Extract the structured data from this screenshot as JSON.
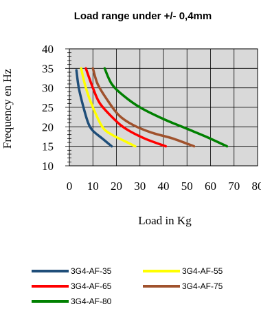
{
  "chart_data": {
    "type": "line",
    "title": "Load range under +/- 0,4mm",
    "xlabel": "Load in Kg",
    "ylabel": "Frequency en Hz",
    "xlim": [
      0,
      80
    ],
    "ylim": [
      10,
      40
    ],
    "x_ticks": [
      "0",
      "10",
      "20",
      "30",
      "40",
      "50",
      "60",
      "70",
      "80"
    ],
    "y_ticks": [
      "10",
      "15",
      "20",
      "25",
      "30",
      "35",
      "40"
    ],
    "grid": true,
    "legend_position": "bottom",
    "series": [
      {
        "name": "3G4-AF-35",
        "color": "#1f4e79",
        "points": [
          [
            3,
            34.5
          ],
          [
            4,
            30
          ],
          [
            6,
            25
          ],
          [
            8,
            21
          ],
          [
            10,
            19
          ],
          [
            14,
            17
          ],
          [
            18,
            15
          ]
        ]
      },
      {
        "name": "3G4-AF-55",
        "color": "#ffff00",
        "points": [
          [
            5,
            35
          ],
          [
            7,
            30
          ],
          [
            10,
            25
          ],
          [
            14,
            20
          ],
          [
            18,
            18
          ],
          [
            23,
            16.5
          ],
          [
            28,
            15
          ]
        ]
      },
      {
        "name": "3G4-AF-65",
        "color": "#ff0000",
        "points": [
          [
            7,
            35
          ],
          [
            10,
            30
          ],
          [
            13,
            26
          ],
          [
            19,
            22
          ],
          [
            24,
            19.5
          ],
          [
            32,
            17
          ],
          [
            41,
            15
          ]
        ]
      },
      {
        "name": "3G4-AF-75",
        "color": "#a0522d",
        "points": [
          [
            10,
            35
          ],
          [
            12,
            31
          ],
          [
            16,
            27
          ],
          [
            21,
            23
          ],
          [
            27,
            20.5
          ],
          [
            35,
            18.5
          ],
          [
            44,
            17
          ],
          [
            53,
            15
          ]
        ]
      },
      {
        "name": "3G4-AF-80",
        "color": "#008000",
        "points": [
          [
            15,
            35
          ],
          [
            18,
            31
          ],
          [
            23,
            28
          ],
          [
            30,
            25
          ],
          [
            40,
            22
          ],
          [
            50,
            19.5
          ],
          [
            58,
            17.5
          ],
          [
            67,
            15
          ]
        ]
      }
    ]
  }
}
